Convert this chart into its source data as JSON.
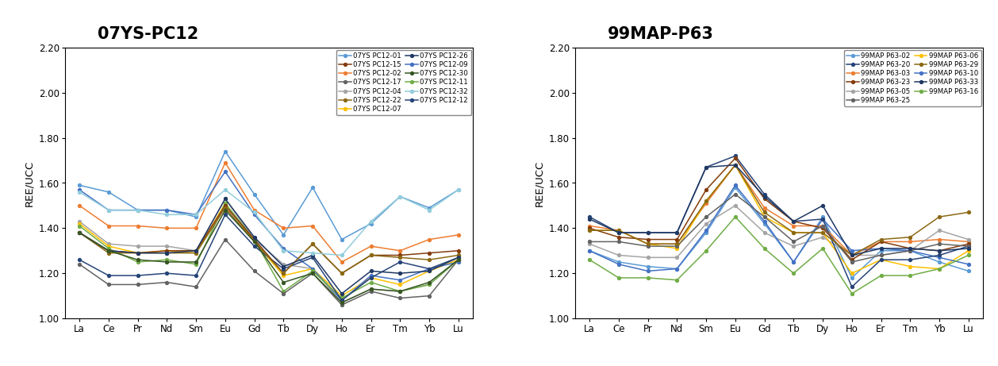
{
  "elements": [
    "La",
    "Ce",
    "Pr",
    "Nd",
    "Sm",
    "Eu",
    "Gd",
    "Tb",
    "Dy",
    "Ho",
    "Er",
    "Tm",
    "Yb",
    "Lu"
  ],
  "title1": "07YS-PC12",
  "title2": "99MAP-P63",
  "ylabel": "REE/UCC",
  "ylim": [
    1.0,
    2.2
  ],
  "yticks": [
    1.0,
    1.2,
    1.4,
    1.6,
    1.8,
    2.0,
    2.2
  ],
  "chart1": {
    "series": [
      {
        "label": "07YS PC12-01",
        "color": "#5B9BD5",
        "values": [
          1.59,
          1.56,
          1.48,
          1.48,
          1.45,
          1.74,
          1.55,
          1.37,
          1.58,
          1.35,
          1.42,
          1.54,
          1.49,
          1.57
        ]
      },
      {
        "label": "07YS PC12-02",
        "color": "#ED7D31",
        "values": [
          1.5,
          1.41,
          1.41,
          1.4,
          1.4,
          1.69,
          1.48,
          1.4,
          1.41,
          1.25,
          1.32,
          1.3,
          1.35,
          1.37
        ]
      },
      {
        "label": "07YS PC12-04",
        "color": "#A5A5A5",
        "values": [
          1.43,
          1.33,
          1.32,
          1.32,
          1.3,
          1.53,
          1.35,
          1.24,
          1.22,
          1.07,
          1.13,
          1.12,
          1.15,
          1.26
        ]
      },
      {
        "label": "07YS PC12-07",
        "color": "#FFC000",
        "values": [
          1.42,
          1.32,
          1.29,
          1.3,
          1.29,
          1.51,
          1.34,
          1.19,
          1.22,
          1.1,
          1.18,
          1.15,
          1.21,
          1.26
        ]
      },
      {
        "label": "07YS PC12-09",
        "color": "#4472C4",
        "values": [
          1.57,
          1.48,
          1.48,
          1.48,
          1.46,
          1.65,
          1.46,
          1.31,
          1.22,
          1.08,
          1.19,
          1.17,
          1.22,
          1.25
        ]
      },
      {
        "label": "07YS PC12-11",
        "color": "#70AD47",
        "values": [
          1.41,
          1.31,
          1.25,
          1.26,
          1.24,
          1.51,
          1.35,
          1.12,
          1.21,
          1.09,
          1.16,
          1.12,
          1.15,
          1.26
        ]
      },
      {
        "label": "07YS PC12-12",
        "color": "#264478",
        "values": [
          1.26,
          1.19,
          1.19,
          1.2,
          1.19,
          1.46,
          1.32,
          1.22,
          1.27,
          1.08,
          1.18,
          1.25,
          1.22,
          1.27
        ]
      },
      {
        "label": "07YS PC12-15",
        "color": "#843C0C",
        "values": [
          1.38,
          1.3,
          1.29,
          1.3,
          1.3,
          1.5,
          1.35,
          1.2,
          1.33,
          1.2,
          1.28,
          1.28,
          1.29,
          1.3
        ]
      },
      {
        "label": "07YS PC12-17",
        "color": "#636363",
        "values": [
          1.24,
          1.15,
          1.15,
          1.16,
          1.14,
          1.35,
          1.21,
          1.11,
          1.2,
          1.06,
          1.12,
          1.09,
          1.1,
          1.26
        ]
      },
      {
        "label": "07YS PC12-22",
        "color": "#8B6914",
        "values": [
          1.38,
          1.29,
          1.29,
          1.29,
          1.29,
          1.49,
          1.34,
          1.2,
          1.33,
          1.2,
          1.28,
          1.27,
          1.26,
          1.28
        ]
      },
      {
        "label": "07YS PC12-26",
        "color": "#1F3864",
        "values": [
          1.38,
          1.3,
          1.29,
          1.29,
          1.3,
          1.53,
          1.36,
          1.23,
          1.28,
          1.11,
          1.21,
          1.2,
          1.21,
          1.27
        ]
      },
      {
        "label": "07YS PC12-30",
        "color": "#375623",
        "values": [
          1.38,
          1.3,
          1.26,
          1.25,
          1.25,
          1.48,
          1.34,
          1.16,
          1.2,
          1.07,
          1.13,
          1.12,
          1.16,
          1.26
        ]
      },
      {
        "label": "07YS PC12-32",
        "color": "#92CDDC",
        "values": [
          1.56,
          1.48,
          1.48,
          1.46,
          1.46,
          1.57,
          1.47,
          1.3,
          1.29,
          1.28,
          1.43,
          1.54,
          1.48,
          1.57
        ]
      }
    ],
    "legend_order": [
      0,
      1,
      2,
      3,
      4,
      5,
      6,
      7,
      8,
      9,
      10,
      11,
      12
    ]
  },
  "chart2": {
    "series": [
      {
        "label": "99MAP P63-02",
        "color": "#5B9BD5",
        "values": [
          1.3,
          1.25,
          1.23,
          1.22,
          1.38,
          1.58,
          1.42,
          1.25,
          1.45,
          1.18,
          1.3,
          1.3,
          1.25,
          1.21
        ]
      },
      {
        "label": "99MAP P63-03",
        "color": "#ED7D31",
        "values": [
          1.41,
          1.39,
          1.33,
          1.33,
          1.51,
          1.68,
          1.49,
          1.41,
          1.41,
          1.28,
          1.34,
          1.34,
          1.35,
          1.34
        ]
      },
      {
        "label": "99MAP P63-05",
        "color": "#A5A5A5",
        "values": [
          1.33,
          1.28,
          1.27,
          1.27,
          1.42,
          1.5,
          1.38,
          1.32,
          1.36,
          1.28,
          1.28,
          1.3,
          1.39,
          1.35
        ]
      },
      {
        "label": "99MAP P63-06",
        "color": "#FFC000",
        "values": [
          1.39,
          1.39,
          1.33,
          1.31,
          1.52,
          1.68,
          1.45,
          1.38,
          1.38,
          1.2,
          1.26,
          1.23,
          1.22,
          1.3
        ]
      },
      {
        "label": "99MAP P63-10",
        "color": "#4472C4",
        "values": [
          1.3,
          1.24,
          1.21,
          1.22,
          1.39,
          1.59,
          1.43,
          1.25,
          1.44,
          1.3,
          1.31,
          1.3,
          1.27,
          1.24
        ]
      },
      {
        "label": "99MAP P63-16",
        "color": "#70AD47",
        "values": [
          1.26,
          1.18,
          1.18,
          1.17,
          1.3,
          1.45,
          1.31,
          1.2,
          1.31,
          1.11,
          1.19,
          1.19,
          1.22,
          1.28
        ]
      },
      {
        "label": "99MAP P63-20",
        "color": "#264478",
        "values": [
          1.45,
          1.38,
          1.38,
          1.38,
          1.67,
          1.72,
          1.55,
          1.43,
          1.44,
          1.14,
          1.26,
          1.26,
          1.28,
          1.32
        ]
      },
      {
        "label": "99MAP P63-23",
        "color": "#843C0C",
        "values": [
          1.4,
          1.36,
          1.35,
          1.35,
          1.57,
          1.71,
          1.53,
          1.43,
          1.4,
          1.26,
          1.34,
          1.31,
          1.3,
          1.33
        ]
      },
      {
        "label": "99MAP P63-25",
        "color": "#636363",
        "values": [
          1.34,
          1.34,
          1.32,
          1.32,
          1.45,
          1.55,
          1.45,
          1.34,
          1.41,
          1.25,
          1.28,
          1.3,
          1.33,
          1.32
        ]
      },
      {
        "label": "99MAP P63-29",
        "color": "#8B6914",
        "values": [
          1.39,
          1.39,
          1.33,
          1.33,
          1.52,
          1.68,
          1.47,
          1.38,
          1.38,
          1.28,
          1.35,
          1.36,
          1.45,
          1.47
        ]
      },
      {
        "label": "99MAP P63-33",
        "color": "#1F3864",
        "values": [
          1.44,
          1.38,
          1.38,
          1.38,
          1.67,
          1.68,
          1.54,
          1.43,
          1.5,
          1.28,
          1.31,
          1.31,
          1.3,
          1.31
        ]
      }
    ]
  }
}
